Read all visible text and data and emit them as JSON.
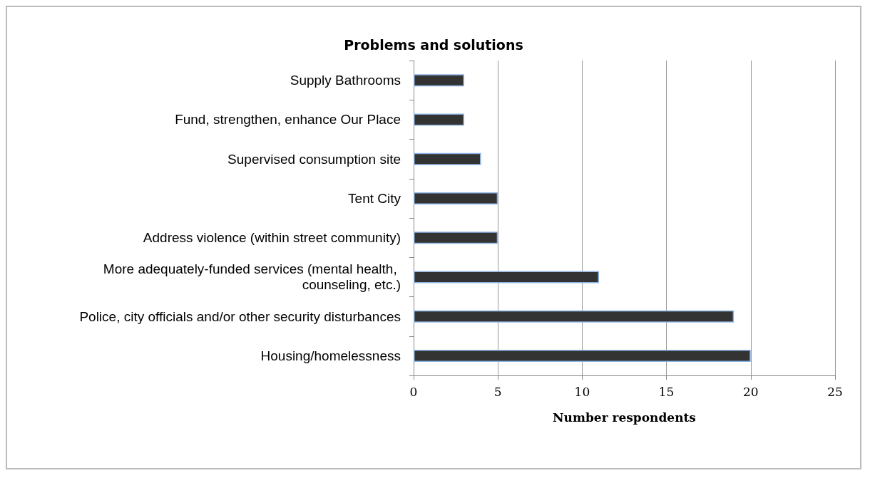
{
  "chart_data": {
    "type": "bar",
    "orientation": "horizontal",
    "title": "Problems and solutions",
    "xlabel": "Number respondents",
    "categories": [
      "Supply Bathrooms",
      "Fund, strengthen, enhance Our Place",
      "Supervised consumption site",
      "Tent City",
      "Address violence (within street community)",
      "More adequately-funded services (mental health, counseling, etc.)",
      "Police, city officials and/or other security disturbances",
      "Housing/homelessness"
    ],
    "values": [
      3,
      3,
      4,
      5,
      5,
      11,
      19,
      20
    ],
    "color": "#333333",
    "xlim": [
      0,
      25
    ],
    "xticks": [
      0,
      5,
      10,
      15,
      20,
      25
    ],
    "grid": "x"
  }
}
